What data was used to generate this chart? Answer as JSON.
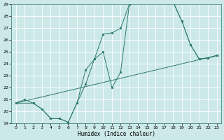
{
  "xlabel": "Humidex (Indice chaleur)",
  "xlim": [
    -0.5,
    23.5
  ],
  "ylim": [
    19,
    29
  ],
  "xticks": [
    0,
    1,
    2,
    3,
    4,
    5,
    6,
    7,
    8,
    9,
    10,
    11,
    12,
    13,
    14,
    15,
    16,
    17,
    18,
    19,
    20,
    21,
    22,
    23
  ],
  "yticks": [
    19,
    20,
    21,
    22,
    23,
    24,
    25,
    26,
    27,
    28,
    29
  ],
  "bg_color": "#cce8e8",
  "grid_color": "#ffffff",
  "line_color": "#2d7a6e",
  "line0_x": [
    0,
    1,
    2,
    3,
    4,
    5,
    6,
    7,
    8,
    9,
    10,
    11,
    12,
    13,
    14,
    15,
    16,
    17,
    18,
    19,
    20,
    21,
    22,
    23
  ],
  "line0_y": [
    20.7,
    21.0,
    20.7,
    20.2,
    19.4,
    19.4,
    19.1,
    20.7,
    23.5,
    24.4,
    26.5,
    26.6,
    27.0,
    29.0,
    29.2,
    29.2,
    29.3,
    29.2,
    29.2,
    27.6,
    25.6,
    24.4,
    24.5,
    24.7
  ],
  "line1_x": [
    0,
    2,
    3,
    4,
    5,
    6,
    7,
    8,
    9,
    10,
    11,
    12,
    13,
    14,
    15,
    16,
    17,
    18,
    19,
    20,
    21,
    22,
    23
  ],
  "line1_y": [
    20.7,
    20.7,
    20.2,
    19.4,
    19.4,
    19.1,
    20.7,
    22.3,
    24.4,
    25.0,
    22.0,
    23.3,
    29.0,
    29.2,
    29.2,
    29.3,
    29.2,
    29.2,
    27.6,
    25.6,
    24.4,
    24.5,
    24.7
  ],
  "line2_x": [
    0,
    23
  ],
  "line2_y": [
    20.7,
    24.7
  ]
}
